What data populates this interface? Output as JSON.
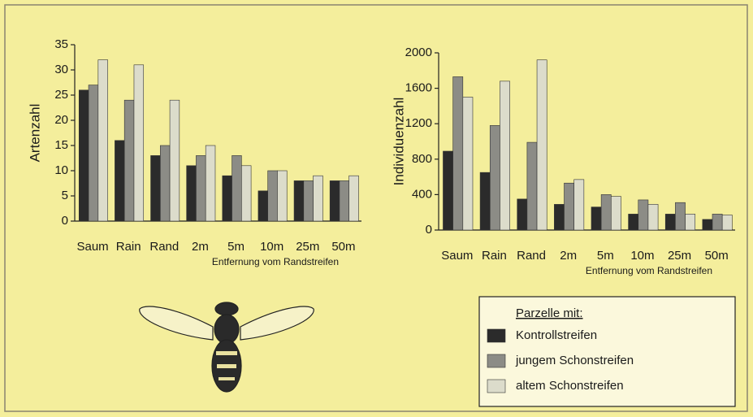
{
  "chart_data": [
    {
      "type": "bar",
      "y_label": "Artenzahl",
      "x_label": "Entfernung vom Randstreifen",
      "legend_title": "Parzelle mit:",
      "categories": [
        "Saum",
        "Rain",
        "Rand",
        "2m",
        "5m",
        "10m",
        "25m",
        "50m"
      ],
      "series": [
        {
          "name": "Kontrollstreifen",
          "color": "#2b2b2b",
          "values": [
            26,
            16,
            13,
            11,
            9,
            6,
            8,
            8
          ]
        },
        {
          "name": "jungem Schonstreifen",
          "color": "#8c8c86",
          "values": [
            27,
            24,
            15,
            13,
            13,
            10,
            8,
            8
          ]
        },
        {
          "name": "altem Schonstreifen",
          "color": "#dcdccb",
          "values": [
            32,
            31,
            24,
            15,
            11,
            10,
            9,
            9
          ]
        }
      ],
      "ylim": [
        0,
        35
      ],
      "yticks": [
        0,
        5,
        10,
        15,
        20,
        25,
        30,
        35
      ]
    },
    {
      "type": "bar",
      "y_label": "Individuenzahl",
      "x_label": "Entfernung vom Randstreifen",
      "categories": [
        "Saum",
        "Rain",
        "Rand",
        "2m",
        "5m",
        "10m",
        "25m",
        "50m"
      ],
      "series": [
        {
          "color": "#2b2b2b",
          "values": [
            890,
            650,
            350,
            290,
            260,
            180,
            180,
            120
          ]
        },
        {
          "color": "#8c8c86",
          "values": [
            1730,
            1180,
            990,
            530,
            400,
            340,
            310,
            180
          ]
        },
        {
          "color": "#dcdccb",
          "values": [
            1500,
            1680,
            1920,
            570,
            380,
            290,
            180,
            170
          ]
        }
      ],
      "ylim": [
        0,
        2000
      ],
      "yticks": [
        0,
        400,
        800,
        1200,
        1600,
        2000
      ]
    }
  ]
}
